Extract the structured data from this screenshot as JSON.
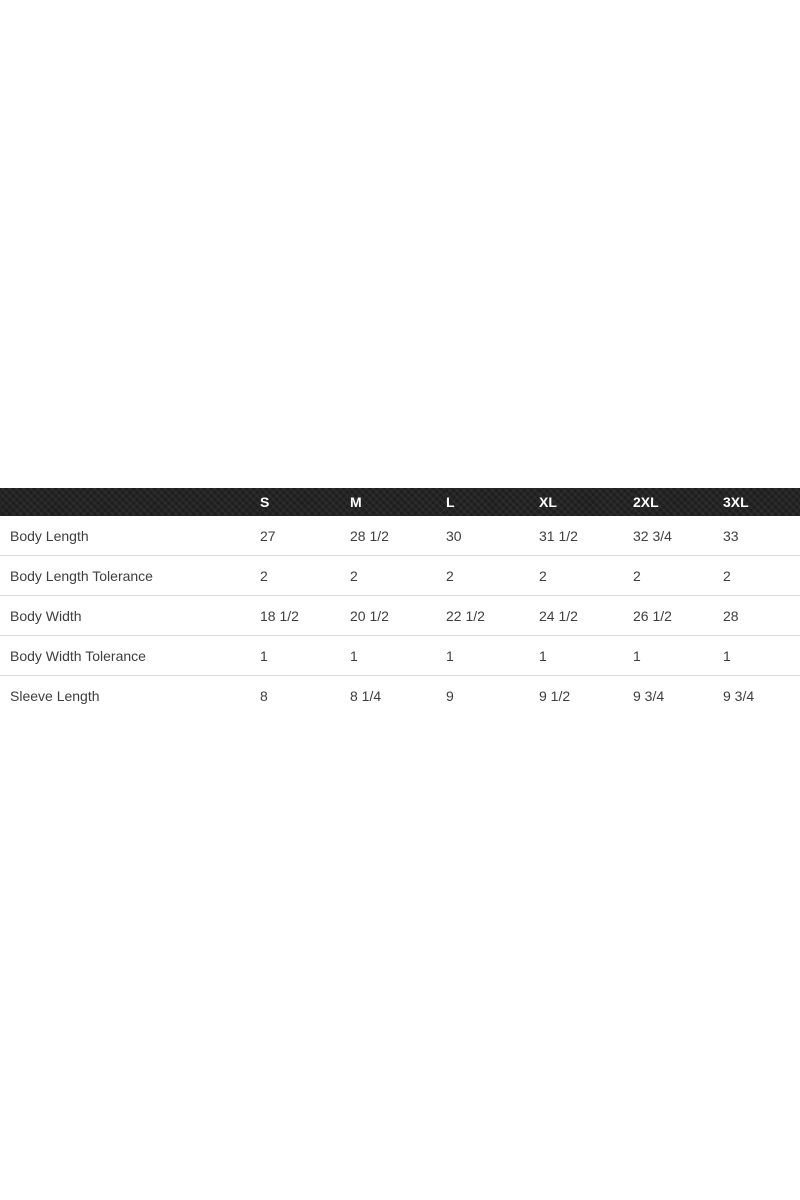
{
  "page": {
    "background_color": "#ffffff"
  },
  "size_chart": {
    "colors": {
      "header_background": "#1e1e1e",
      "header_text": "#ffffff",
      "body_text": "#3e3e3e",
      "divider": "#dcdcdc"
    },
    "columns": [
      "S",
      "M",
      "L",
      "XL",
      "2XL",
      "3XL"
    ],
    "rows": [
      {
        "label": "Body Length",
        "values": [
          "27",
          "28 1/2",
          "30",
          "31 1/2",
          "32 3/4",
          "33"
        ]
      },
      {
        "label": "Body Length Tolerance",
        "values": [
          "2",
          "2",
          "2",
          "2",
          "2",
          "2"
        ]
      },
      {
        "label": "Body Width",
        "values": [
          "18 1/2",
          "20 1/2",
          "22 1/2",
          "24 1/2",
          "26 1/2",
          "28"
        ]
      },
      {
        "label": "Body Width Tolerance",
        "values": [
          "1",
          "1",
          "1",
          "1",
          "1",
          "1"
        ]
      },
      {
        "label": "Sleeve Length",
        "values": [
          "8",
          "8 1/4",
          "9",
          "9 1/2",
          "9 3/4",
          "9 3/4"
        ]
      }
    ]
  }
}
